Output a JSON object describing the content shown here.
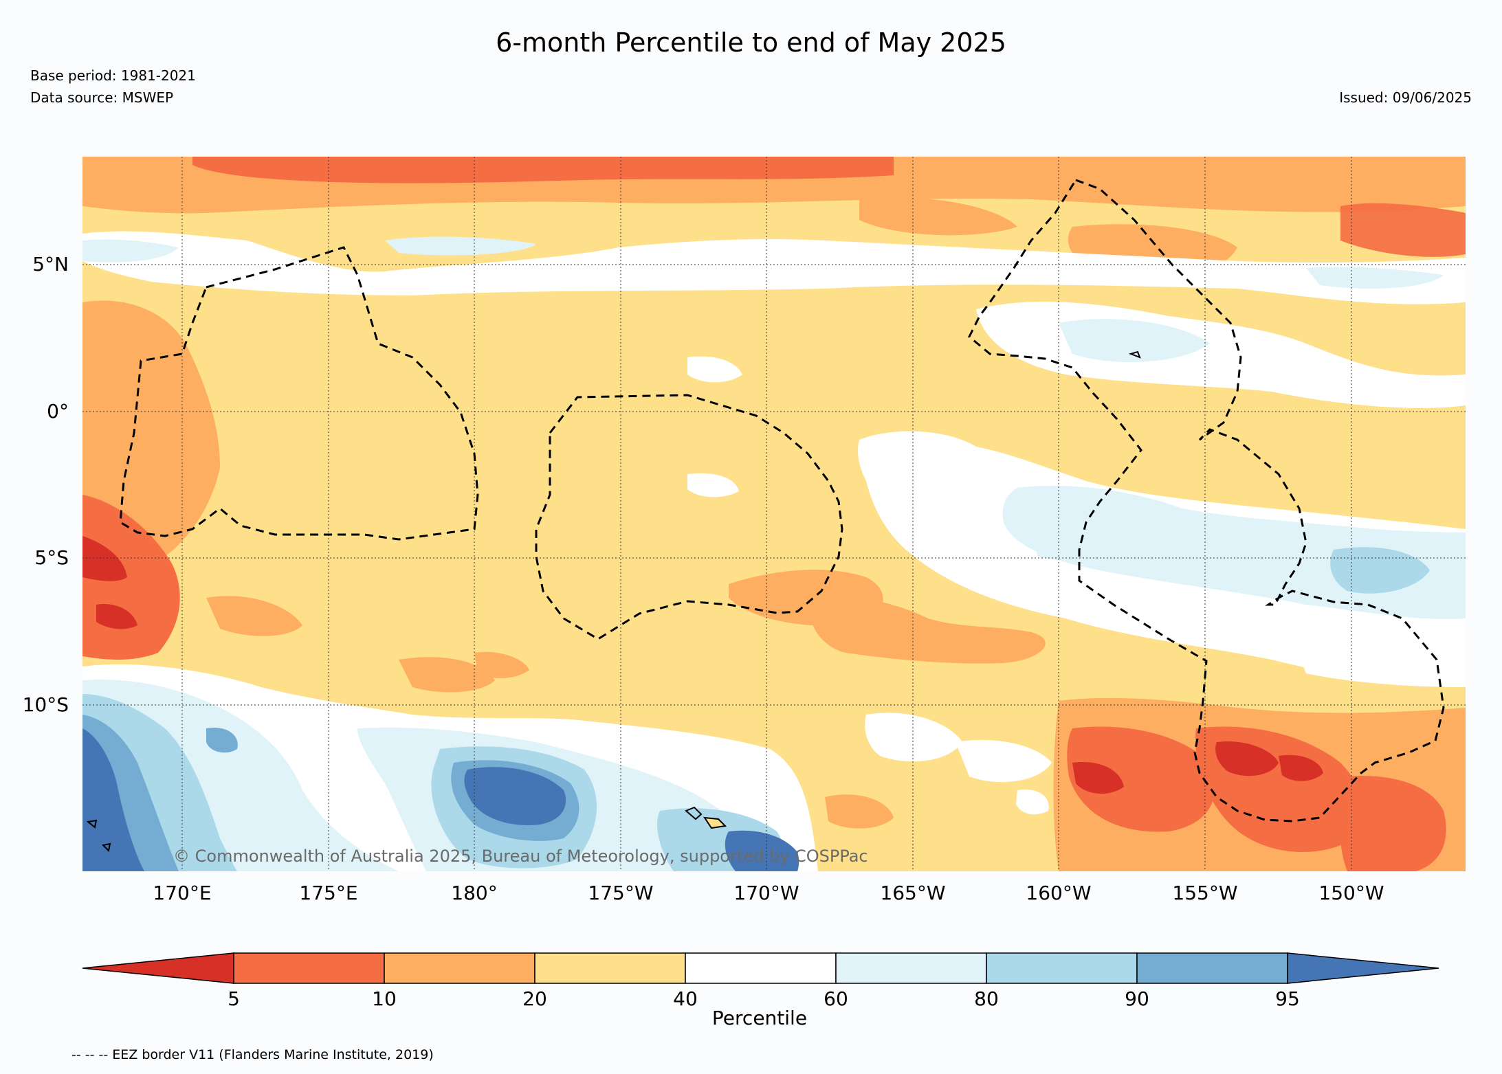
{
  "title": "6-month Percentile to end of May 2025",
  "base_period": "Base period: 1981-2021",
  "data_source": "Data source: MSWEP",
  "issued": "Issued: 09/06/2025",
  "copyright": "© Commonwealth of Australia 2025, Bureau of Meteorology, supported by COSPPac",
  "lat_labels": [
    "5°N",
    "0°",
    "5°S",
    "10°S"
  ],
  "lon_labels": [
    "170°E",
    "175°E",
    "180°",
    "175°W",
    "170°W",
    "165°W",
    "160°W",
    "155°W",
    "150°W"
  ],
  "colorbar": {
    "label": "Percentile",
    "ticks": [
      "5",
      "10",
      "20",
      "40",
      "60",
      "80",
      "90",
      "95"
    ],
    "colors": [
      "#d73027",
      "#f46d43",
      "#fdae61",
      "#fee08b",
      "#ffffff",
      "#e0f3f8",
      "#abd9e9",
      "#74add1",
      "#4575b4"
    ]
  },
  "footnote": "-- -- -- EEZ border V11 (Flanders Marine Institute, 2019)"
}
